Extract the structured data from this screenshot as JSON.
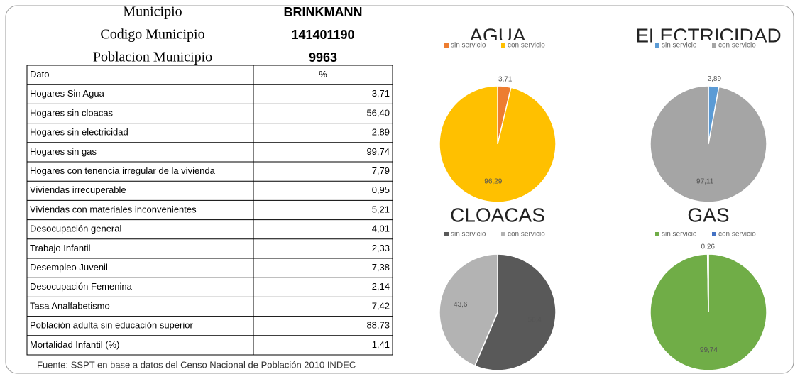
{
  "header": {
    "rows": [
      [
        "Municipio",
        "BRINKMANN"
      ],
      [
        "Codigo Municipio",
        "141401190"
      ],
      [
        "Poblacion Municipio",
        "9963"
      ]
    ]
  },
  "table": {
    "header": [
      "Dato",
      "%"
    ],
    "rows": [
      [
        "Hogares Sin Agua",
        "3,71"
      ],
      [
        "Hogares sin cloacas",
        "56,40"
      ],
      [
        "Hogares sin electricidad",
        "2,89"
      ],
      [
        "Hogares sin gas",
        "99,74"
      ],
      [
        "Hogares con tenencia irregular de la vivienda",
        "7,79"
      ],
      [
        "Viviendas irrecuperable",
        "0,95"
      ],
      [
        "Viviendas con materiales inconvenientes",
        "5,21"
      ],
      [
        "Desocupación general",
        "4,01"
      ],
      [
        "Trabajo Infantil",
        "2,33"
      ],
      [
        "Desempleo Juvenil",
        "7,38"
      ],
      [
        "Desocupación Femenina",
        "2,14"
      ],
      [
        "Tasa Analfabetismo",
        "7,42"
      ],
      [
        "Población adulta  sin educación superior",
        "88,73"
      ],
      [
        "Mortalidad Infantil (%)",
        "1,41"
      ]
    ]
  },
  "source": "Fuente: SSPT en base a datos del Censo Nacional de Población 2010 INDEC",
  "chart_data": [
    {
      "type": "pie",
      "title": "AGUA",
      "categories": [
        "sin servicio",
        "con servicio"
      ],
      "values": [
        3.71,
        96.29
      ],
      "value_labels": [
        "3,71",
        "96,29"
      ],
      "colors": [
        "#ed7d31",
        "#ffc000"
      ]
    },
    {
      "type": "pie",
      "title": "ELECTRICIDAD",
      "categories": [
        "sin servicio",
        "con servicio"
      ],
      "values": [
        2.89,
        97.11
      ],
      "value_labels": [
        "2,89",
        "97,11"
      ],
      "colors": [
        "#5b9bd5",
        "#a5a5a5"
      ]
    },
    {
      "type": "pie",
      "title": "CLOACAS",
      "categories": [
        "sin servicio",
        "con servicio"
      ],
      "values": [
        56.4,
        43.6
      ],
      "value_labels": [
        "56,4",
        "43,6"
      ],
      "colors": [
        "#595959",
        "#b3b3b3"
      ]
    },
    {
      "type": "pie",
      "title": "GAS",
      "categories": [
        "sin servicio",
        "con servicio"
      ],
      "values": [
        99.74,
        0.26
      ],
      "value_labels": [
        "99,74",
        "0,26"
      ],
      "colors": [
        "#70ad47",
        "#4472c4"
      ]
    }
  ]
}
